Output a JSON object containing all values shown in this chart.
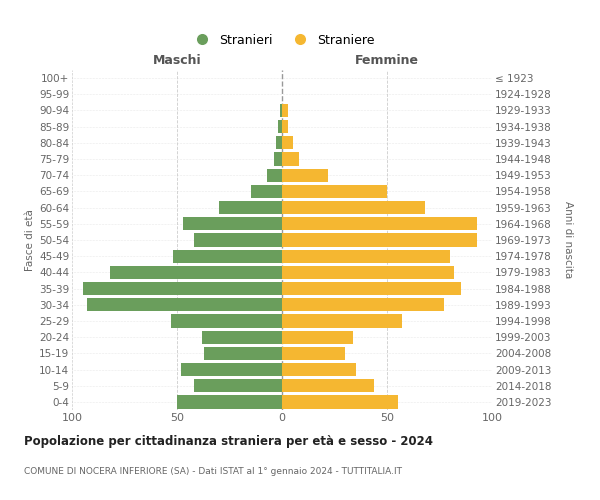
{
  "age_groups": [
    "0-4",
    "5-9",
    "10-14",
    "15-19",
    "20-24",
    "25-29",
    "30-34",
    "35-39",
    "40-44",
    "45-49",
    "50-54",
    "55-59",
    "60-64",
    "65-69",
    "70-74",
    "75-79",
    "80-84",
    "85-89",
    "90-94",
    "95-99",
    "100+"
  ],
  "birth_years": [
    "2019-2023",
    "2014-2018",
    "2009-2013",
    "2004-2008",
    "1999-2003",
    "1994-1998",
    "1989-1993",
    "1984-1988",
    "1979-1983",
    "1974-1978",
    "1969-1973",
    "1964-1968",
    "1959-1963",
    "1954-1958",
    "1949-1953",
    "1944-1948",
    "1939-1943",
    "1934-1938",
    "1929-1933",
    "1924-1928",
    "≤ 1923"
  ],
  "maschi": [
    50,
    42,
    48,
    37,
    38,
    53,
    93,
    95,
    82,
    52,
    42,
    47,
    30,
    15,
    7,
    4,
    3,
    2,
    1,
    0,
    0
  ],
  "femmine": [
    55,
    44,
    35,
    30,
    34,
    57,
    77,
    85,
    82,
    80,
    93,
    93,
    68,
    50,
    22,
    8,
    5,
    3,
    3,
    0,
    0
  ],
  "color_maschi": "#6a9e5c",
  "color_femmine": "#f5b731",
  "title": "Popolazione per cittadinanza straniera per età e sesso - 2024",
  "subtitle": "COMUNE DI NOCERA INFERIORE (SA) - Dati ISTAT al 1° gennaio 2024 - TUTTITALIA.IT",
  "xlabel_left": "Maschi",
  "xlabel_right": "Femmine",
  "ylabel_left": "Fasce di età",
  "ylabel_right": "Anni di nascita",
  "legend_stranieri": "Stranieri",
  "legend_straniere": "Straniere",
  "xlim": 100,
  "background_color": "#ffffff",
  "grid_color": "#cccccc"
}
